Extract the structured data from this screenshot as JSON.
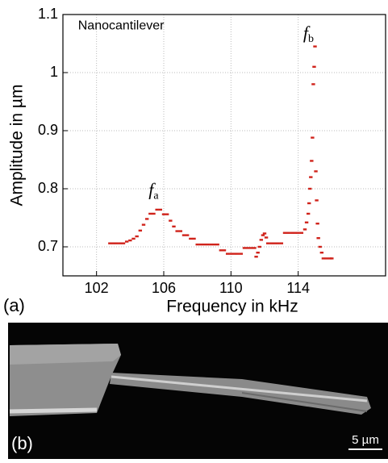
{
  "chart_data": {
    "type": "scatter",
    "panel_label": "(a)",
    "xlabel": "Frequency in kHz",
    "ylabel": "Amplitude in µm",
    "annotations": [
      {
        "text": "Nanocantilever",
        "x": 100.9,
        "y": 1.08
      },
      {
        "main": "f",
        "sub": "a",
        "x": 105.1,
        "y": 0.795
      },
      {
        "main": "f",
        "sub": "b",
        "x": 114.3,
        "y": 1.065
      }
    ],
    "xlim": [
      100,
      119.2
    ],
    "ylim": [
      0.65,
      1.1
    ],
    "xticks": [
      102,
      106,
      110,
      114
    ],
    "yticks": [
      0.7,
      0.8,
      0.9,
      1.0,
      1.1
    ],
    "grid": true,
    "color": "#d0231b",
    "x": [
      102.8,
      103.0,
      103.2,
      103.4,
      103.6,
      103.8,
      104.0,
      104.2,
      104.4,
      104.6,
      104.8,
      105.0,
      105.2,
      105.4,
      105.6,
      105.8,
      106.0,
      106.2,
      106.4,
      106.6,
      106.8,
      107.0,
      107.2,
      107.4,
      107.6,
      107.8,
      108.0,
      108.2,
      108.4,
      108.6,
      108.8,
      109.0,
      109.2,
      109.4,
      109.6,
      109.8,
      110.0,
      110.2,
      110.4,
      110.6,
      110.8,
      111.0,
      111.2,
      111.4,
      111.5,
      111.6,
      111.7,
      111.8,
      111.9,
      112.0,
      112.1,
      112.2,
      112.4,
      112.6,
      112.8,
      113.0,
      113.2,
      113.4,
      113.6,
      113.8,
      114.0,
      114.2,
      114.4,
      114.5,
      114.6,
      114.65,
      114.7,
      114.75,
      114.8,
      114.85,
      114.9,
      114.95,
      115.0,
      115.05,
      115.1,
      115.15,
      115.2,
      115.3,
      115.4,
      115.5,
      115.7,
      115.9,
      116.0
    ],
    "values": [
      0.706,
      0.706,
      0.706,
      0.706,
      0.706,
      0.709,
      0.711,
      0.714,
      0.718,
      0.728,
      0.738,
      0.748,
      0.757,
      0.757,
      0.764,
      0.764,
      0.756,
      0.756,
      0.745,
      0.735,
      0.727,
      0.727,
      0.72,
      0.72,
      0.714,
      0.714,
      0.704,
      0.704,
      0.704,
      0.704,
      0.704,
      0.704,
      0.704,
      0.694,
      0.694,
      0.688,
      0.688,
      0.688,
      0.688,
      0.688,
      0.698,
      0.698,
      0.698,
      0.698,
      0.683,
      0.69,
      0.7,
      0.712,
      0.72,
      0.723,
      0.716,
      0.706,
      0.706,
      0.706,
      0.706,
      0.706,
      0.724,
      0.724,
      0.724,
      0.724,
      0.724,
      0.724,
      0.73,
      0.742,
      0.757,
      0.775,
      0.8,
      0.82,
      0.848,
      0.888,
      0.98,
      1.01,
      1.045,
      0.83,
      0.78,
      0.74,
      0.715,
      0.7,
      0.69,
      0.68,
      0.68,
      0.68,
      0.68
    ]
  },
  "image_panel": {
    "panel_label": "(b)",
    "scale_bar": "5 µm"
  }
}
